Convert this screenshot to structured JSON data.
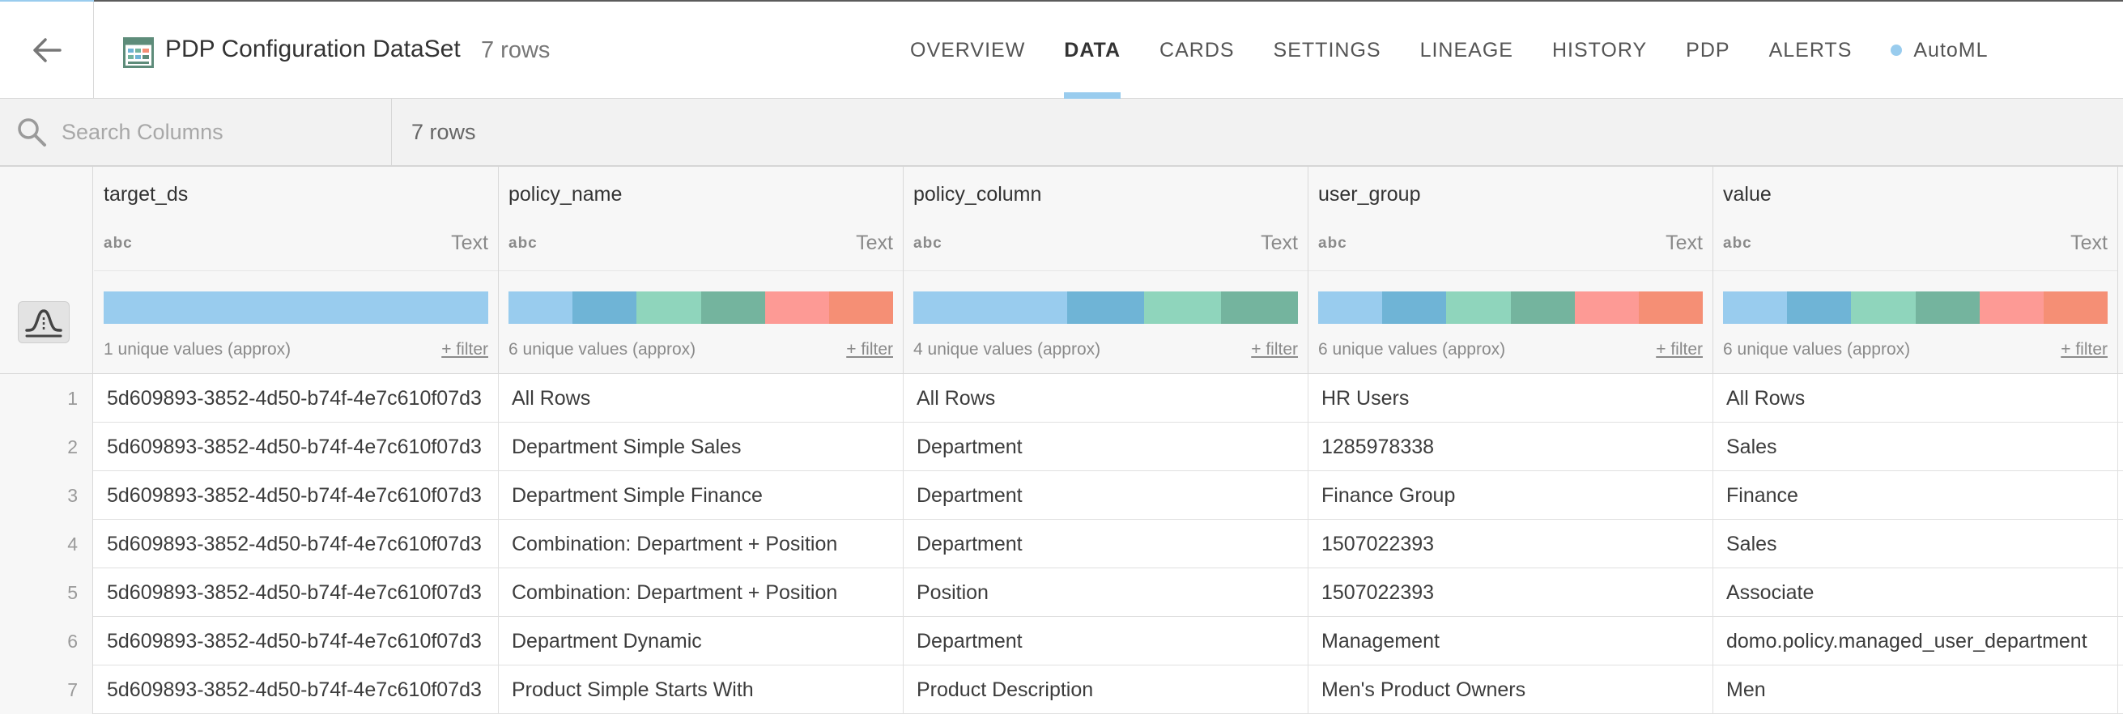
{
  "header": {
    "title": "PDP Configuration DataSet",
    "row_count": "7 rows",
    "tabs": [
      {
        "label": "OVERVIEW",
        "active": false
      },
      {
        "label": "DATA",
        "active": true
      },
      {
        "label": "CARDS",
        "active": false
      },
      {
        "label": "SETTINGS",
        "active": false
      },
      {
        "label": "LINEAGE",
        "active": false
      },
      {
        "label": "HISTORY",
        "active": false
      },
      {
        "label": "PDP",
        "active": false
      },
      {
        "label": "ALERTS",
        "active": false
      },
      {
        "label": "AutoML",
        "active": false,
        "dot_color": "#99ccee"
      }
    ]
  },
  "toolbar": {
    "search_placeholder": "Search Columns",
    "row_count": "7 rows"
  },
  "columns": [
    {
      "name": "target_ds",
      "type_abbr": "abc",
      "type": "Text",
      "unique": "1 unique values (approx)",
      "filter": "+ filter",
      "bar_colors": [
        "#99ccee"
      ]
    },
    {
      "name": "policy_name",
      "type_abbr": "abc",
      "type": "Text",
      "unique": "6 unique values (approx)",
      "filter": "+ filter",
      "bar_colors": [
        "#99ccee",
        "#6fb4d6",
        "#8fd5bc",
        "#74b49e",
        "#fd9a95",
        "#f58f75"
      ]
    },
    {
      "name": "policy_column",
      "type_abbr": "abc",
      "type": "Text",
      "unique": "4 unique values (approx)",
      "filter": "+ filter",
      "bar_colors": [
        "#99ccee",
        "#99ccee",
        "#6fb4d6",
        "#8fd5bc",
        "#74b49e"
      ]
    },
    {
      "name": "user_group",
      "type_abbr": "abc",
      "type": "Text",
      "unique": "6 unique values (approx)",
      "filter": "+ filter",
      "bar_colors": [
        "#99ccee",
        "#6fb4d6",
        "#8fd5bc",
        "#74b49e",
        "#fd9a95",
        "#f58f75"
      ]
    },
    {
      "name": "value",
      "type_abbr": "abc",
      "type": "Text",
      "unique": "6 unique values (approx)",
      "filter": "+ filter",
      "bar_colors": [
        "#99ccee",
        "#6fb4d6",
        "#8fd5bc",
        "#74b49e",
        "#fd9a95",
        "#f58f75"
      ]
    }
  ],
  "rows": [
    {
      "num": "1",
      "cells": [
        "5d609893-3852-4d50-b74f-4e7c610f07d3",
        "All Rows",
        "All Rows",
        "HR Users",
        "All Rows"
      ]
    },
    {
      "num": "2",
      "cells": [
        "5d609893-3852-4d50-b74f-4e7c610f07d3",
        "Department Simple Sales",
        "Department",
        "1285978338",
        "Sales"
      ]
    },
    {
      "num": "3",
      "cells": [
        "5d609893-3852-4d50-b74f-4e7c610f07d3",
        "Department Simple Finance",
        "Department",
        "Finance Group",
        "Finance"
      ]
    },
    {
      "num": "4",
      "cells": [
        "5d609893-3852-4d50-b74f-4e7c610f07d3",
        "Combination: Department + Position",
        "Department",
        "1507022393",
        "Sales"
      ]
    },
    {
      "num": "5",
      "cells": [
        "5d609893-3852-4d50-b74f-4e7c610f07d3",
        "Combination: Department + Position",
        "Position",
        "1507022393",
        "Associate"
      ]
    },
    {
      "num": "6",
      "cells": [
        "5d609893-3852-4d50-b74f-4e7c610f07d3",
        "Department Dynamic",
        "Department",
        "Management",
        "domo.policy.managed_user_department"
      ]
    },
    {
      "num": "7",
      "cells": [
        "5d609893-3852-4d50-b74f-4e7c610f07d3",
        "Product Simple Starts With",
        "Product Description",
        "Men's Product Owners",
        "Men"
      ]
    }
  ],
  "icons": {
    "back": "arrow-left-icon",
    "dataset": "dataset-icon",
    "search": "search-icon",
    "profile": "data-profile-icon"
  }
}
